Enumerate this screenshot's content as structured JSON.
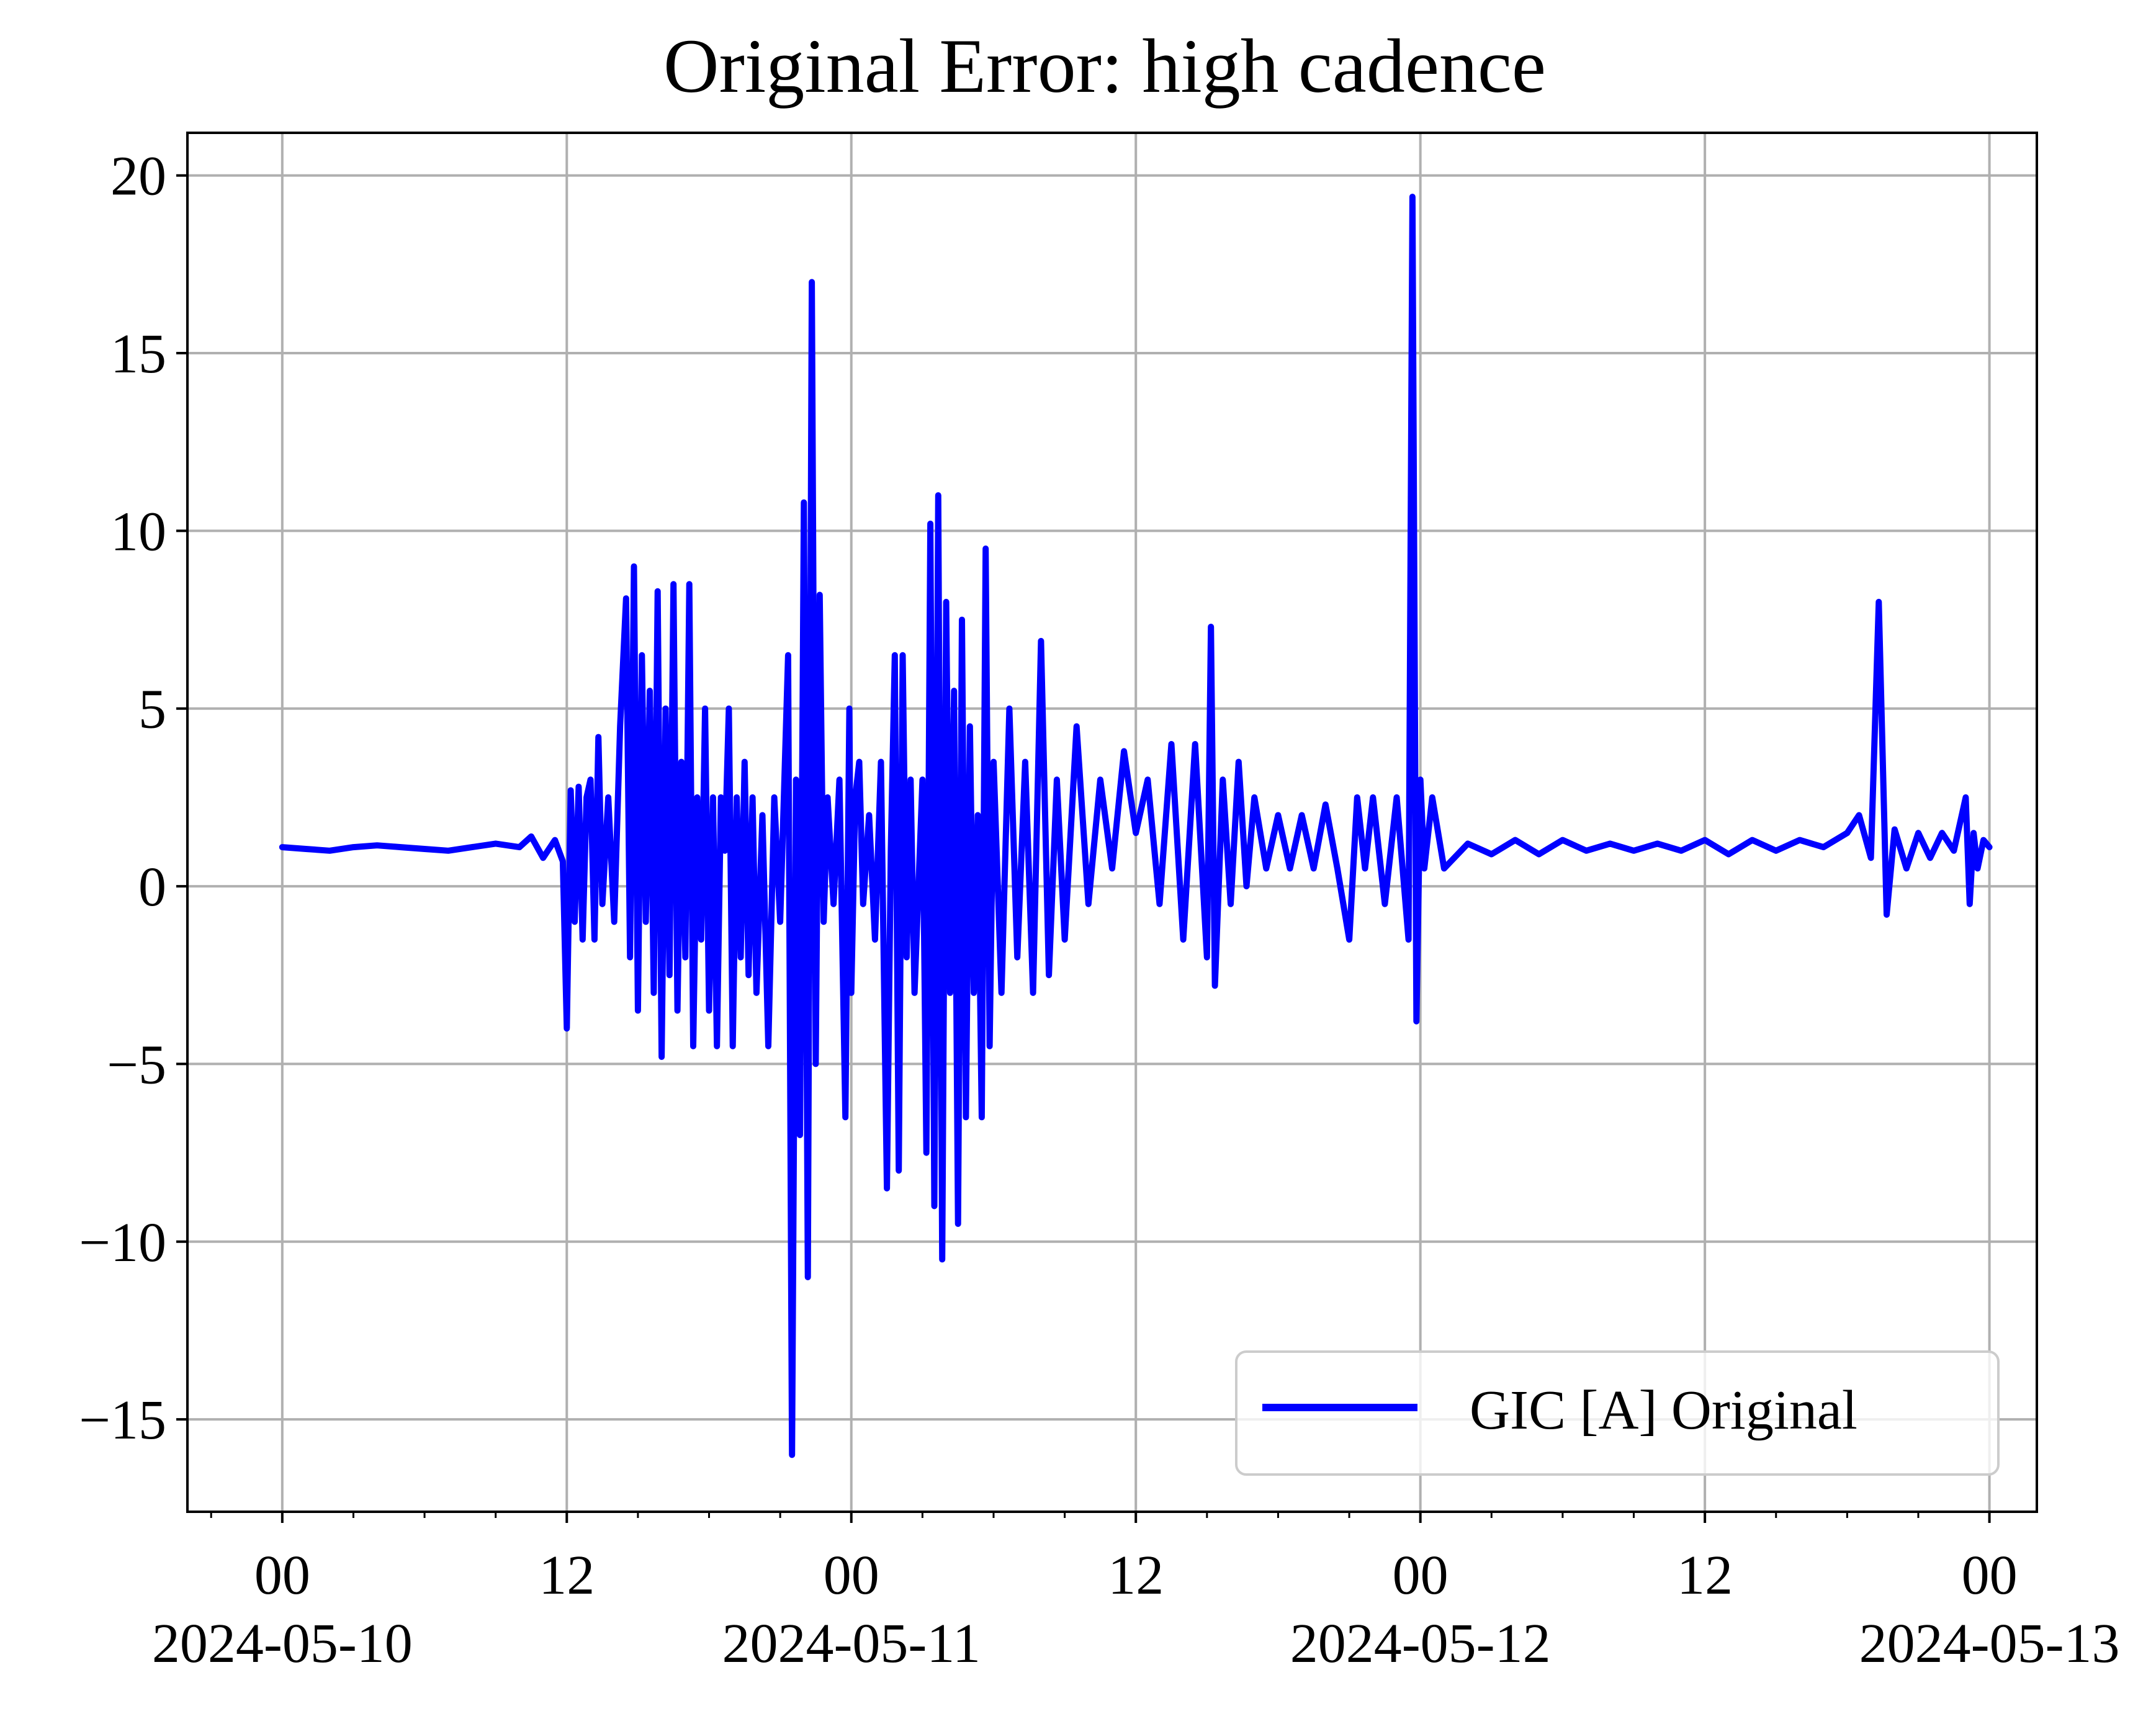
{
  "chart_data": {
    "type": "line",
    "title": "Original Error: high cadence",
    "xlabel": "",
    "ylabel": "",
    "x_range": [
      "2024-05-09T20:00",
      "2024-05-13T02:00"
    ],
    "ylim": [
      -17.6,
      21.2
    ],
    "y_ticks": [
      -15,
      -10,
      -5,
      0,
      5,
      10,
      15,
      20
    ],
    "y_tick_labels": [
      "−15",
      "−10",
      "−5",
      "0",
      "5",
      "10",
      "15",
      "20"
    ],
    "x_ticks": [
      "2024-05-10T00:00",
      "2024-05-10T12:00",
      "2024-05-11T00:00",
      "2024-05-11T12:00",
      "2024-05-12T00:00",
      "2024-05-12T12:00",
      "2024-05-13T00:00"
    ],
    "x_tick_labels": [
      [
        "00",
        "2024-05-10"
      ],
      [
        "12",
        ""
      ],
      [
        "00",
        "2024-05-11"
      ],
      [
        "12",
        ""
      ],
      [
        "00",
        "2024-05-12"
      ],
      [
        "12",
        ""
      ],
      [
        "00",
        "2024-05-13"
      ]
    ],
    "grid": true,
    "legend_position": "lower-right",
    "series": [
      {
        "name": "GIC [A] Original",
        "color": "#0000ff",
        "points": [
          [
            "2024-05-10T00:00",
            1.1
          ],
          [
            "2024-05-10T01:00",
            1.05
          ],
          [
            "2024-05-10T02:00",
            1.0
          ],
          [
            "2024-05-10T03:00",
            1.1
          ],
          [
            "2024-05-10T04:00",
            1.15
          ],
          [
            "2024-05-10T05:00",
            1.1
          ],
          [
            "2024-05-10T06:00",
            1.05
          ],
          [
            "2024-05-10T07:00",
            1.0
          ],
          [
            "2024-05-10T08:00",
            1.1
          ],
          [
            "2024-05-10T09:00",
            1.2
          ],
          [
            "2024-05-10T10:00",
            1.1
          ],
          [
            "2024-05-10T10:30",
            1.4
          ],
          [
            "2024-05-10T11:00",
            0.8
          ],
          [
            "2024-05-10T11:30",
            1.3
          ],
          [
            "2024-05-10T11:50",
            0.7
          ],
          [
            "2024-05-10T12:00",
            -4.0
          ],
          [
            "2024-05-10T12:10",
            2.7
          ],
          [
            "2024-05-10T12:20",
            -1.0
          ],
          [
            "2024-05-10T12:30",
            2.8
          ],
          [
            "2024-05-10T12:40",
            -1.5
          ],
          [
            "2024-05-10T12:50",
            2.5
          ],
          [
            "2024-05-10T13:00",
            3.0
          ],
          [
            "2024-05-10T13:10",
            -1.5
          ],
          [
            "2024-05-10T13:20",
            4.2
          ],
          [
            "2024-05-10T13:30",
            -0.5
          ],
          [
            "2024-05-10T13:45",
            2.5
          ],
          [
            "2024-05-10T14:00",
            -1.0
          ],
          [
            "2024-05-10T14:15",
            4.5
          ],
          [
            "2024-05-10T14:30",
            8.1
          ],
          [
            "2024-05-10T14:40",
            -2.0
          ],
          [
            "2024-05-10T14:50",
            9.0
          ],
          [
            "2024-05-10T15:00",
            -3.5
          ],
          [
            "2024-05-10T15:10",
            6.5
          ],
          [
            "2024-05-10T15:20",
            -1.0
          ],
          [
            "2024-05-10T15:30",
            5.5
          ],
          [
            "2024-05-10T15:40",
            -3.0
          ],
          [
            "2024-05-10T15:50",
            8.3
          ],
          [
            "2024-05-10T16:00",
            -4.8
          ],
          [
            "2024-05-10T16:10",
            5.0
          ],
          [
            "2024-05-10T16:20",
            -2.5
          ],
          [
            "2024-05-10T16:30",
            8.5
          ],
          [
            "2024-05-10T16:40",
            -3.5
          ],
          [
            "2024-05-10T16:50",
            3.5
          ],
          [
            "2024-05-10T17:00",
            -2.0
          ],
          [
            "2024-05-10T17:10",
            8.5
          ],
          [
            "2024-05-10T17:20",
            -4.5
          ],
          [
            "2024-05-10T17:30",
            2.5
          ],
          [
            "2024-05-10T17:40",
            -1.5
          ],
          [
            "2024-05-10T17:50",
            5.0
          ],
          [
            "2024-05-10T18:00",
            -3.5
          ],
          [
            "2024-05-10T18:10",
            2.5
          ],
          [
            "2024-05-10T18:20",
            -4.5
          ],
          [
            "2024-05-10T18:30",
            2.5
          ],
          [
            "2024-05-10T18:40",
            1.0
          ],
          [
            "2024-05-10T18:50",
            5.0
          ],
          [
            "2024-05-10T19:00",
            -4.5
          ],
          [
            "2024-05-10T19:10",
            2.5
          ],
          [
            "2024-05-10T19:20",
            -2.0
          ],
          [
            "2024-05-10T19:30",
            3.5
          ],
          [
            "2024-05-10T19:40",
            -2.5
          ],
          [
            "2024-05-10T19:50",
            2.5
          ],
          [
            "2024-05-10T20:00",
            -3.0
          ],
          [
            "2024-05-10T20:15",
            2.0
          ],
          [
            "2024-05-10T20:30",
            -4.5
          ],
          [
            "2024-05-10T20:45",
            2.5
          ],
          [
            "2024-05-10T21:00",
            -1.0
          ],
          [
            "2024-05-10T21:20",
            6.5
          ],
          [
            "2024-05-10T21:30",
            -16.0
          ],
          [
            "2024-05-10T21:40",
            3.0
          ],
          [
            "2024-05-10T21:50",
            -7.0
          ],
          [
            "2024-05-10T22:00",
            10.8
          ],
          [
            "2024-05-10T22:10",
            -11.0
          ],
          [
            "2024-05-10T22:20",
            17.0
          ],
          [
            "2024-05-10T22:30",
            -5.0
          ],
          [
            "2024-05-10T22:40",
            8.2
          ],
          [
            "2024-05-10T22:50",
            -1.0
          ],
          [
            "2024-05-10T23:00",
            2.5
          ],
          [
            "2024-05-10T23:15",
            -0.5
          ],
          [
            "2024-05-10T23:30",
            3.0
          ],
          [
            "2024-05-10T23:45",
            -6.5
          ],
          [
            "2024-05-10T23:55",
            5.0
          ],
          [
            "2024-05-11T00:00",
            -3.0
          ],
          [
            "2024-05-11T00:10",
            2.5
          ],
          [
            "2024-05-11T00:20",
            3.5
          ],
          [
            "2024-05-11T00:30",
            -0.5
          ],
          [
            "2024-05-11T00:45",
            2.0
          ],
          [
            "2024-05-11T01:00",
            -1.5
          ],
          [
            "2024-05-11T01:15",
            3.5
          ],
          [
            "2024-05-11T01:30",
            -8.5
          ],
          [
            "2024-05-11T01:40",
            1.0
          ],
          [
            "2024-05-11T01:50",
            6.5
          ],
          [
            "2024-05-11T02:00",
            -8.0
          ],
          [
            "2024-05-11T02:10",
            6.5
          ],
          [
            "2024-05-11T02:20",
            -2.0
          ],
          [
            "2024-05-11T02:30",
            3.0
          ],
          [
            "2024-05-11T02:40",
            -3.0
          ],
          [
            "2024-05-11T03:00",
            3.0
          ],
          [
            "2024-05-11T03:10",
            -7.5
          ],
          [
            "2024-05-11T03:20",
            10.2
          ],
          [
            "2024-05-11T03:30",
            -9.0
          ],
          [
            "2024-05-11T03:40",
            11.0
          ],
          [
            "2024-05-11T03:50",
            -10.5
          ],
          [
            "2024-05-11T04:00",
            8.0
          ],
          [
            "2024-05-11T04:10",
            -3.0
          ],
          [
            "2024-05-11T04:20",
            5.5
          ],
          [
            "2024-05-11T04:30",
            -9.5
          ],
          [
            "2024-05-11T04:40",
            7.5
          ],
          [
            "2024-05-11T04:50",
            -6.5
          ],
          [
            "2024-05-11T05:00",
            4.5
          ],
          [
            "2024-05-11T05:10",
            -3.0
          ],
          [
            "2024-05-11T05:20",
            2.0
          ],
          [
            "2024-05-11T05:30",
            -6.5
          ],
          [
            "2024-05-11T05:40",
            9.5
          ],
          [
            "2024-05-11T05:50",
            -4.5
          ],
          [
            "2024-05-11T06:00",
            3.5
          ],
          [
            "2024-05-11T06:20",
            -3.0
          ],
          [
            "2024-05-11T06:40",
            5.0
          ],
          [
            "2024-05-11T07:00",
            -2.0
          ],
          [
            "2024-05-11T07:20",
            3.5
          ],
          [
            "2024-05-11T07:40",
            -3.0
          ],
          [
            "2024-05-11T08:00",
            6.9
          ],
          [
            "2024-05-11T08:20",
            -2.5
          ],
          [
            "2024-05-11T08:40",
            3.0
          ],
          [
            "2024-05-11T09:00",
            -1.5
          ],
          [
            "2024-05-11T09:30",
            4.5
          ],
          [
            "2024-05-11T10:00",
            -0.5
          ],
          [
            "2024-05-11T10:30",
            3.0
          ],
          [
            "2024-05-11T11:00",
            0.5
          ],
          [
            "2024-05-11T11:30",
            3.8
          ],
          [
            "2024-05-11T12:00",
            1.5
          ],
          [
            "2024-05-11T12:30",
            3.0
          ],
          [
            "2024-05-11T13:00",
            -0.5
          ],
          [
            "2024-05-11T13:30",
            4.0
          ],
          [
            "2024-05-11T14:00",
            -1.5
          ],
          [
            "2024-05-11T14:30",
            4.0
          ],
          [
            "2024-05-11T15:00",
            -2.0
          ],
          [
            "2024-05-11T15:10",
            7.3
          ],
          [
            "2024-05-11T15:20",
            -2.8
          ],
          [
            "2024-05-11T15:40",
            3.0
          ],
          [
            "2024-05-11T16:00",
            -0.5
          ],
          [
            "2024-05-11T16:20",
            3.5
          ],
          [
            "2024-05-11T16:40",
            0.0
          ],
          [
            "2024-05-11T17:00",
            2.5
          ],
          [
            "2024-05-11T17:30",
            0.5
          ],
          [
            "2024-05-11T18:00",
            2.0
          ],
          [
            "2024-05-11T18:30",
            0.5
          ],
          [
            "2024-05-11T19:00",
            2.0
          ],
          [
            "2024-05-11T19:30",
            0.5
          ],
          [
            "2024-05-11T20:00",
            2.3
          ],
          [
            "2024-05-11T20:30",
            0.5
          ],
          [
            "2024-05-11T21:00",
            -1.5
          ],
          [
            "2024-05-11T21:20",
            2.5
          ],
          [
            "2024-05-11T21:40",
            0.5
          ],
          [
            "2024-05-11T22:00",
            2.5
          ],
          [
            "2024-05-11T22:30",
            -0.5
          ],
          [
            "2024-05-11T23:00",
            2.5
          ],
          [
            "2024-05-11T23:30",
            -1.5
          ],
          [
            "2024-05-11T23:40",
            19.4
          ],
          [
            "2024-05-11T23:50",
            -3.8
          ],
          [
            "2024-05-12T00:00",
            3.0
          ],
          [
            "2024-05-12T00:10",
            0.5
          ],
          [
            "2024-05-12T00:30",
            2.5
          ],
          [
            "2024-05-12T01:00",
            0.5
          ],
          [
            "2024-05-12T02:00",
            1.2
          ],
          [
            "2024-05-12T03:00",
            0.9
          ],
          [
            "2024-05-12T04:00",
            1.3
          ],
          [
            "2024-05-12T05:00",
            0.9
          ],
          [
            "2024-05-12T06:00",
            1.3
          ],
          [
            "2024-05-12T07:00",
            1.0
          ],
          [
            "2024-05-12T08:00",
            1.2
          ],
          [
            "2024-05-12T09:00",
            1.0
          ],
          [
            "2024-05-12T10:00",
            1.2
          ],
          [
            "2024-05-12T11:00",
            1.0
          ],
          [
            "2024-05-12T12:00",
            1.3
          ],
          [
            "2024-05-12T13:00",
            0.9
          ],
          [
            "2024-05-12T14:00",
            1.3
          ],
          [
            "2024-05-12T15:00",
            1.0
          ],
          [
            "2024-05-12T16:00",
            1.3
          ],
          [
            "2024-05-12T17:00",
            1.1
          ],
          [
            "2024-05-12T18:00",
            1.5
          ],
          [
            "2024-05-12T18:30",
            2.0
          ],
          [
            "2024-05-12T19:00",
            0.8
          ],
          [
            "2024-05-12T19:20",
            8.0
          ],
          [
            "2024-05-12T19:40",
            -0.8
          ],
          [
            "2024-05-12T20:00",
            1.6
          ],
          [
            "2024-05-12T20:30",
            0.5
          ],
          [
            "2024-05-12T21:00",
            1.5
          ],
          [
            "2024-05-12T21:30",
            0.8
          ],
          [
            "2024-05-12T22:00",
            1.5
          ],
          [
            "2024-05-12T22:30",
            1.0
          ],
          [
            "2024-05-12T23:00",
            2.5
          ],
          [
            "2024-05-12T23:10",
            -0.5
          ],
          [
            "2024-05-12T23:20",
            1.5
          ],
          [
            "2024-05-12T23:30",
            0.5
          ],
          [
            "2024-05-12T23:45",
            1.3
          ],
          [
            "2024-05-13T00:00",
            1.1
          ]
        ]
      }
    ]
  }
}
